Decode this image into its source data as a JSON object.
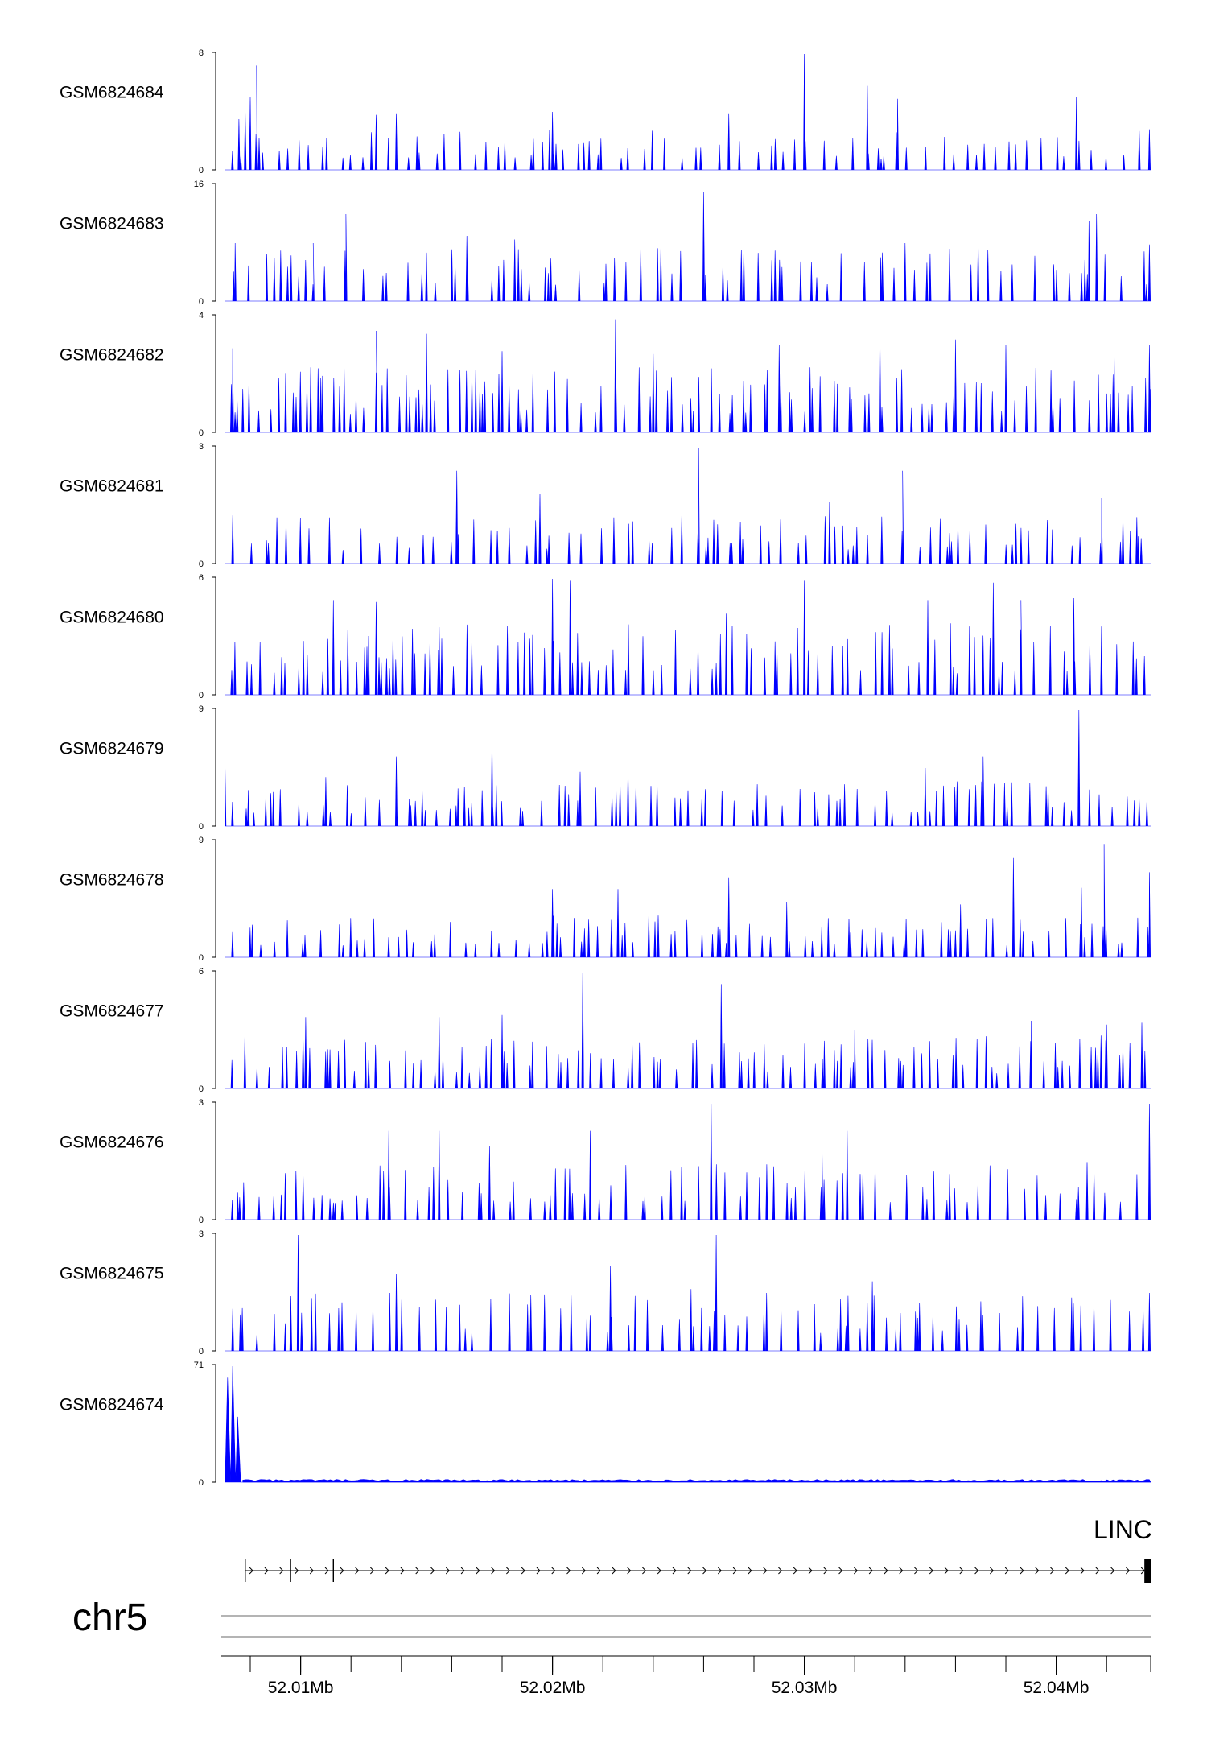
{
  "chart_data": {
    "type": "area",
    "chromosome": "chr5",
    "color": "#0000ff",
    "xlim": [
      52006850,
      52043750
    ],
    "x_ticks": [
      {
        "pos": 52010000,
        "label": "52.01Mb"
      },
      {
        "pos": 52020000,
        "label": "52.02Mb"
      },
      {
        "pos": 52030000,
        "label": "52.03Mb"
      },
      {
        "pos": 52040000,
        "label": "52.04Mb"
      }
    ],
    "minor_ticks": [
      52008000,
      52010000,
      52012000,
      52014000,
      52016000,
      52018000,
      52020000,
      52022000,
      52024000,
      52026000,
      52028000,
      52030000,
      52032000,
      52034000,
      52036000,
      52038000,
      52040000,
      52042000
    ],
    "gene": {
      "label": "LINC",
      "start": 52007800,
      "end": 52043750,
      "exons": [
        52043500
      ]
    },
    "tracks": [
      {
        "name": "GSM6824684",
        "ymax": 8,
        "ylabel_min": "0",
        "ylabel_max": "8",
        "peaks": [
          [
            52007550,
            3.5
          ],
          [
            52007800,
            4.0
          ],
          [
            52008000,
            5.0
          ],
          [
            52008250,
            7.2
          ],
          [
            52013000,
            3.8
          ],
          [
            52013800,
            3.9
          ],
          [
            52020000,
            4.0
          ],
          [
            52027000,
            3.9
          ],
          [
            52030000,
            8.0
          ],
          [
            52032500,
            5.8
          ],
          [
            52033700,
            4.9
          ],
          [
            52040800,
            5.0
          ],
          [
            52043700,
            2.8
          ]
        ],
        "seed": 11,
        "density": 0.55,
        "base": 2.2
      },
      {
        "name": "GSM6824683",
        "ymax": 16,
        "ylabel_min": "0",
        "ylabel_max": "16",
        "peaks": [
          [
            52007400,
            8.0
          ],
          [
            52010500,
            8.0
          ],
          [
            52011800,
            12.0
          ],
          [
            52016600,
            9.0
          ],
          [
            52018500,
            8.5
          ],
          [
            52026000,
            15.0
          ],
          [
            52034000,
            8.0
          ],
          [
            52036900,
            8.0
          ],
          [
            52041300,
            11.0
          ],
          [
            52041600,
            12.0
          ],
          [
            52043700,
            7.8
          ]
        ],
        "seed": 23,
        "density": 0.45,
        "base": 6.0
      },
      {
        "name": "GSM6824682",
        "ymax": 4,
        "ylabel_min": "0",
        "ylabel_max": "4",
        "peaks": [
          [
            52007300,
            2.9
          ],
          [
            52013000,
            3.5
          ],
          [
            52015000,
            3.4
          ],
          [
            52018000,
            2.8
          ],
          [
            52022500,
            3.9
          ],
          [
            52024000,
            2.7
          ],
          [
            52029000,
            3.0
          ],
          [
            52033000,
            3.4
          ],
          [
            52036000,
            3.2
          ],
          [
            52038000,
            3.0
          ],
          [
            52042300,
            2.8
          ],
          [
            52043700,
            3.0
          ]
        ],
        "seed": 37,
        "density": 0.75,
        "base": 1.8
      },
      {
        "name": "GSM6824681",
        "ymax": 3,
        "ylabel_min": "0",
        "ylabel_max": "3",
        "peaks": [
          [
            52016200,
            2.4
          ],
          [
            52019500,
            1.8
          ],
          [
            52025800,
            3.0
          ],
          [
            52031000,
            1.6
          ],
          [
            52033900,
            2.4
          ],
          [
            52041800,
            1.7
          ],
          [
            52043200,
            1.2
          ]
        ],
        "seed": 41,
        "density": 0.55,
        "base": 1.0
      },
      {
        "name": "GSM6824680",
        "ymax": 6,
        "ylabel_min": "0",
        "ylabel_max": "6",
        "peaks": [
          [
            52011300,
            4.9
          ],
          [
            52013000,
            4.8
          ],
          [
            52015500,
            3.5
          ],
          [
            52020000,
            6.0
          ],
          [
            52020700,
            5.9
          ],
          [
            52026900,
            4.2
          ],
          [
            52030000,
            5.9
          ],
          [
            52034900,
            4.9
          ],
          [
            52037500,
            5.8
          ],
          [
            52038600,
            4.9
          ],
          [
            52040700,
            5.0
          ],
          [
            52043500,
            2.0
          ]
        ],
        "seed": 53,
        "density": 0.7,
        "base": 3.0
      },
      {
        "name": "GSM6824679",
        "ymax": 9,
        "ylabel_min": "0",
        "ylabel_max": "9",
        "peaks": [
          [
            52007000,
            4.5
          ],
          [
            52011000,
            3.8
          ],
          [
            52013800,
            5.4
          ],
          [
            52017600,
            6.7
          ],
          [
            52021100,
            4.2
          ],
          [
            52023000,
            4.3
          ],
          [
            52034800,
            4.5
          ],
          [
            52037100,
            5.4
          ],
          [
            52040900,
            9.0
          ],
          [
            52043600,
            1.9
          ]
        ],
        "seed": 67,
        "density": 0.6,
        "base": 2.8
      },
      {
        "name": "GSM6824678",
        "ymax": 9,
        "ylabel_min": "0",
        "ylabel_max": "9",
        "peaks": [
          [
            52020000,
            5.3
          ],
          [
            52022600,
            5.3
          ],
          [
            52027000,
            6.2
          ],
          [
            52029300,
            4.3
          ],
          [
            52036200,
            4.1
          ],
          [
            52038300,
            7.7
          ],
          [
            52041000,
            5.4
          ],
          [
            52041900,
            8.8
          ],
          [
            52043700,
            6.6
          ]
        ],
        "seed": 79,
        "density": 0.6,
        "base": 2.6
      },
      {
        "name": "GSM6824677",
        "ymax": 6,
        "ylabel_min": "0",
        "ylabel_max": "6",
        "peaks": [
          [
            52010200,
            3.7
          ],
          [
            52015500,
            3.7
          ],
          [
            52018000,
            3.8
          ],
          [
            52021200,
            6.0
          ],
          [
            52026700,
            5.4
          ],
          [
            52032000,
            3.0
          ],
          [
            52039000,
            3.5
          ],
          [
            52042000,
            3.3
          ],
          [
            52043400,
            3.4
          ]
        ],
        "seed": 89,
        "density": 0.7,
        "base": 2.2
      },
      {
        "name": "GSM6824676",
        "ymax": 3,
        "ylabel_min": "0",
        "ylabel_max": "3",
        "peaks": [
          [
            52013500,
            2.3
          ],
          [
            52015500,
            2.3
          ],
          [
            52017500,
            1.9
          ],
          [
            52021500,
            2.3
          ],
          [
            52026300,
            3.0
          ],
          [
            52030700,
            2.0
          ],
          [
            52031700,
            2.3
          ],
          [
            52041500,
            1.3
          ],
          [
            52043700,
            3.0
          ]
        ],
        "seed": 97,
        "density": 0.65,
        "base": 1.2
      },
      {
        "name": "GSM6824675",
        "ymax": 3,
        "ylabel_min": "0",
        "ylabel_max": "3",
        "peaks": [
          [
            52009900,
            3.0
          ],
          [
            52013800,
            2.0
          ],
          [
            52022300,
            2.2
          ],
          [
            52025500,
            1.6
          ],
          [
            52026500,
            3.0
          ],
          [
            52028500,
            1.5
          ],
          [
            52032700,
            1.8
          ],
          [
            52043700,
            1.5
          ]
        ],
        "seed": 103,
        "density": 0.6,
        "base": 1.2
      },
      {
        "name": "GSM6824674",
        "ymax": 71,
        "ylabel_min": "0",
        "ylabel_max": "71",
        "peaks": [
          [
            52007100,
            64.0
          ],
          [
            52007300,
            71.0
          ],
          [
            52007500,
            40.0
          ]
        ],
        "seed": 113,
        "density": 0.0,
        "base": 0.0
      }
    ]
  }
}
